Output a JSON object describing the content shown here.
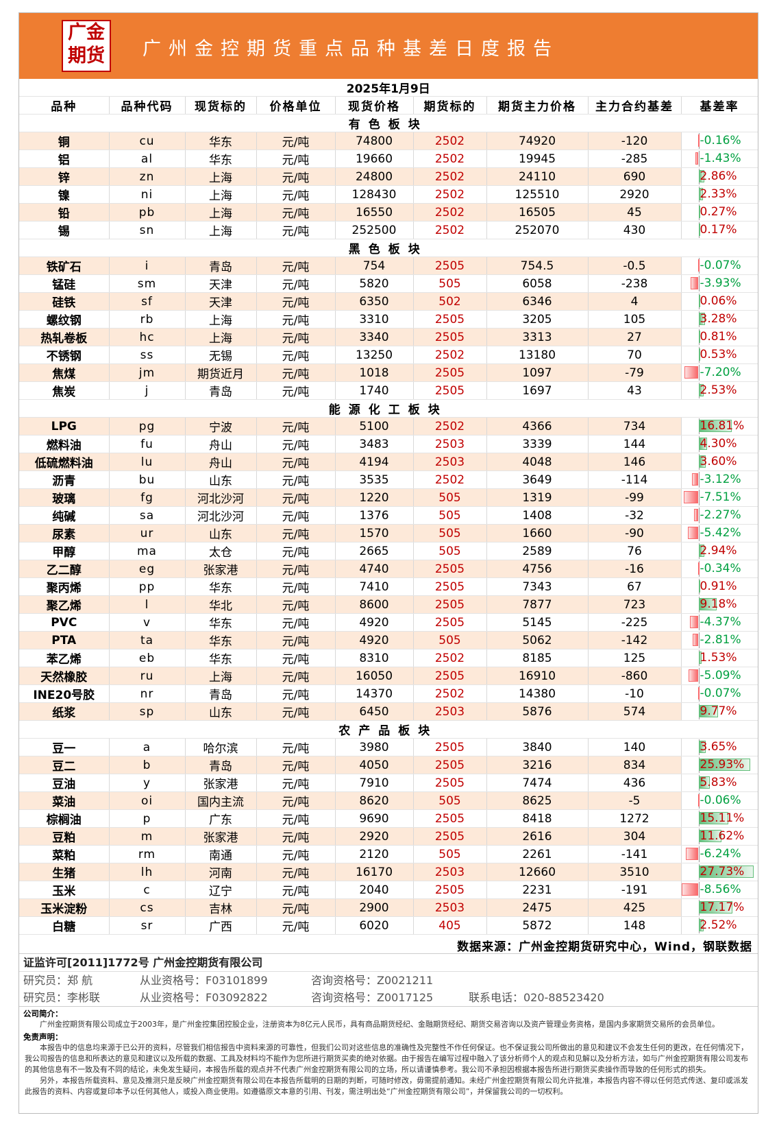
{
  "header": {
    "logo": [
      "广金",
      "期货"
    ],
    "title": "广州金控期货重点品种基差日度报告"
  },
  "date": "2025年1月9日",
  "columns": [
    "品种",
    "品种代码",
    "现货标的",
    "价格单位",
    "现货价格",
    "期货标的",
    "期货主力价格",
    "主力合约基差",
    "基差率"
  ],
  "sections": [
    {
      "name": "有色板块",
      "rows": [
        [
          "铜",
          "cu",
          "华东",
          "元/吨",
          74800,
          "2502",
          74920,
          -120,
          {
            "value": -0.16,
            "label": "-0.16%"
          }
        ],
        [
          "铝",
          "al",
          "华东",
          "元/吨",
          19660,
          "2502",
          19945,
          -285,
          {
            "value": -1.43,
            "label": "-1.43%"
          }
        ],
        [
          "锌",
          "zn",
          "上海",
          "元/吨",
          24800,
          "2502",
          24110,
          690,
          {
            "value": 2.86,
            "label": "2.86%"
          }
        ],
        [
          "镍",
          "ni",
          "上海",
          "元/吨",
          128430,
          "2502",
          125510,
          2920,
          {
            "value": 2.33,
            "label": "2.33%"
          }
        ],
        [
          "铅",
          "pb",
          "上海",
          "元/吨",
          16550,
          "2502",
          16505,
          45,
          {
            "value": 0.27,
            "label": "0.27%"
          }
        ],
        [
          "锡",
          "sn",
          "上海",
          "元/吨",
          252500,
          "2502",
          252070,
          430,
          {
            "value": 0.17,
            "label": "0.17%"
          }
        ]
      ]
    },
    {
      "name": "黑色板块",
      "rows": [
        [
          "铁矿石",
          "i",
          "青岛",
          "元/吨",
          754,
          "2505",
          754.5,
          -0.5,
          {
            "value": -0.07,
            "label": "-0.07%"
          }
        ],
        [
          "锰硅",
          "sm",
          "天津",
          "元/吨",
          5820,
          "505",
          6058,
          -238,
          {
            "value": -3.93,
            "label": "-3.93%"
          }
        ],
        [
          "硅铁",
          "sf",
          "天津",
          "元/吨",
          6350,
          "502",
          6346,
          4,
          {
            "value": 0.06,
            "label": "0.06%"
          }
        ],
        [
          "螺纹钢",
          "rb",
          "上海",
          "元/吨",
          3310,
          "2505",
          3205,
          105,
          {
            "value": 3.28,
            "label": "3.28%"
          }
        ],
        [
          "热轧卷板",
          "hc",
          "上海",
          "元/吨",
          3340,
          "2505",
          3313,
          27,
          {
            "value": 0.81,
            "label": "0.81%"
          }
        ],
        [
          "不锈钢",
          "ss",
          "无锡",
          "元/吨",
          13250,
          "2502",
          13180,
          70,
          {
            "value": 0.53,
            "label": "0.53%"
          }
        ],
        [
          "焦煤",
          "jm",
          "期货近月",
          "元/吨",
          1018,
          "2505",
          1097,
          -79,
          {
            "value": -7.2,
            "label": "-7.20%"
          }
        ],
        [
          "焦炭",
          "j",
          "青岛",
          "元/吨",
          1740,
          "2505",
          1697,
          43,
          {
            "value": 2.53,
            "label": "2.53%"
          }
        ]
      ]
    },
    {
      "name": "能源化工板块",
      "rows": [
        [
          "LPG",
          "pg",
          "宁波",
          "元/吨",
          5100,
          "2502",
          4366,
          734,
          {
            "value": 16.81,
            "label": "16.81%"
          }
        ],
        [
          "燃料油",
          "fu",
          "舟山",
          "元/吨",
          3483,
          "2503",
          3339,
          144,
          {
            "value": 4.3,
            "label": "4.30%"
          }
        ],
        [
          "低硫燃料油",
          "lu",
          "舟山",
          "元/吨",
          4194,
          "2503",
          4048,
          146,
          {
            "value": 3.6,
            "label": "3.60%"
          }
        ],
        [
          "沥青",
          "bu",
          "山东",
          "元/吨",
          3535,
          "2502",
          3649,
          -114,
          {
            "value": -3.12,
            "label": "-3.12%"
          }
        ],
        [
          "玻璃",
          "fg",
          "河北沙河",
          "元/吨",
          1220,
          "505",
          1319,
          -99,
          {
            "value": -7.51,
            "label": "-7.51%"
          }
        ],
        [
          "纯碱",
          "sa",
          "河北沙河",
          "元/吨",
          1376,
          "505",
          1408,
          -32,
          {
            "value": -2.27,
            "label": "-2.27%"
          }
        ],
        [
          "尿素",
          "ur",
          "山东",
          "元/吨",
          1570,
          "505",
          1660,
          -90,
          {
            "value": -5.42,
            "label": "-5.42%"
          }
        ],
        [
          "甲醇",
          "ma",
          "太仓",
          "元/吨",
          2665,
          "505",
          2589,
          76,
          {
            "value": 2.94,
            "label": "2.94%"
          }
        ],
        [
          "乙二醇",
          "eg",
          "张家港",
          "元/吨",
          4740,
          "2505",
          4756,
          -16,
          {
            "value": -0.34,
            "label": "-0.34%"
          }
        ],
        [
          "聚丙烯",
          "pp",
          "华东",
          "元/吨",
          7410,
          "2505",
          7343,
          67,
          {
            "value": 0.91,
            "label": "0.91%"
          }
        ],
        [
          "聚乙烯",
          "l",
          "华北",
          "元/吨",
          8600,
          "2505",
          7877,
          723,
          {
            "value": 9.18,
            "label": "9.18%"
          }
        ],
        [
          "PVC",
          "v",
          "华东",
          "元/吨",
          4920,
          "2505",
          5145,
          -225,
          {
            "value": -4.37,
            "label": "-4.37%"
          }
        ],
        [
          "PTA",
          "ta",
          "华东",
          "元/吨",
          4920,
          "505",
          5062,
          -142,
          {
            "value": -2.81,
            "label": "-2.81%"
          }
        ],
        [
          "苯乙烯",
          "eb",
          "华东",
          "元/吨",
          8310,
          "2502",
          8185,
          125,
          {
            "value": 1.53,
            "label": "1.53%"
          }
        ],
        [
          "天然橡胶",
          "ru",
          "上海",
          "元/吨",
          16050,
          "2505",
          16910,
          -860,
          {
            "value": -5.09,
            "label": "-5.09%"
          }
        ],
        [
          "INE20号胶",
          "nr",
          "青岛",
          "元/吨",
          14370,
          "2502",
          14380,
          -10,
          {
            "value": -0.07,
            "label": "-0.07%"
          }
        ],
        [
          "纸浆",
          "sp",
          "山东",
          "元/吨",
          6450,
          "2503",
          5876,
          574,
          {
            "value": 9.77,
            "label": "9.77%"
          }
        ]
      ]
    },
    {
      "name": "农产品板块",
      "rows": [
        [
          "豆一",
          "a",
          "哈尔滨",
          "元/吨",
          3980,
          "2505",
          3840,
          140,
          {
            "value": 3.65,
            "label": "3.65%"
          }
        ],
        [
          "豆二",
          "b",
          "青岛",
          "元/吨",
          4050,
          "2505",
          3216,
          834,
          {
            "value": 25.93,
            "label": "25.93%"
          }
        ],
        [
          "豆油",
          "y",
          "张家港",
          "元/吨",
          7910,
          "2505",
          7474,
          436,
          {
            "value": 5.83,
            "label": "5.83%"
          }
        ],
        [
          "菜油",
          "oi",
          "国内主流",
          "元/吨",
          8620,
          "505",
          8625,
          -5,
          {
            "value": -0.06,
            "label": "-0.06%"
          }
        ],
        [
          "棕榈油",
          "p",
          "广东",
          "元/吨",
          9690,
          "2505",
          8418,
          1272,
          {
            "value": 15.11,
            "label": "15.11%"
          }
        ],
        [
          "豆粕",
          "m",
          "张家港",
          "元/吨",
          2920,
          "2505",
          2616,
          304,
          {
            "value": 11.62,
            "label": "11.62%"
          }
        ],
        [
          "菜粕",
          "rm",
          "南通",
          "元/吨",
          2120,
          "505",
          2261,
          -141,
          {
            "value": -6.24,
            "label": "-6.24%"
          }
        ],
        [
          "生猪",
          "lh",
          "河南",
          "元/吨",
          16170,
          "2503",
          12660,
          3510,
          {
            "value": 27.73,
            "label": "27.73%"
          }
        ],
        [
          "玉米",
          "c",
          "辽宁",
          "元/吨",
          2040,
          "2505",
          2231,
          -191,
          {
            "value": -8.56,
            "label": "-8.56%"
          }
        ],
        [
          "玉米淀粉",
          "cs",
          "吉林",
          "元/吨",
          2900,
          "2503",
          2475,
          425,
          {
            "value": 17.17,
            "label": "17.17%"
          }
        ],
        [
          "白糖",
          "sr",
          "广西",
          "元/吨",
          6020,
          "405",
          5872,
          148,
          {
            "value": 2.52,
            "label": "2.52%"
          }
        ]
      ]
    }
  ],
  "source": "数据来源：广州金控期货研究中心，Wind，钢联数据",
  "footer": {
    "license": "证监许可[2011]1772号 广州金控期货有限公司",
    "researchers": [
      [
        "研究员：郑 航",
        "从业资格号：F03101899",
        "咨询资格号：Z0021211"
      ],
      [
        "研究员：李彬联",
        "从业资格号：F03092822",
        "咨询资格号：Z0017125",
        "联系电话：020-88523420"
      ]
    ],
    "intro_title": "公司简介：",
    "intro": "广州金控期货有限公司成立于2003年，是广州金控集团控股企业，注册资本为8亿元人民币，具有商品期货经纪、金融期货经纪、期货交易咨询以及资产管理业务资格，是国内多家期货交易所的会员单位。",
    "disclaimer_title": "免责声明：",
    "disclaimer": [
      "本报告中的信息均来源于已公开的资料，尽管我们相信报告中资料来源的可靠性，但我们公司对这些信息的准确性及完整性不作任何保证。也不保证我公司所做出的意见和建议不会发生任何的更改，在任何情况下，我公司报告的信息和所表达的意见和建议以及所载的数据、工具及材料均不能作为您所进行期货买卖的绝对依据。由于报告在编写过程中融入了该分析师个人的观点和见解以及分析方法，如与广州金控期货有限公司发布的其他信息有不一致及有不同的结论，未免发生疑问，本报告所载的观点并不代表广州金控期货有限公司的立场，所以请谨慎参考。我公司不承担因根据本报告所进行期货买卖操作而导致的任何形式的损失。",
      "另外，本报告所载资料、意见及推测只是反映广州金控期货有限公司在本报告所载明的日期的判断，可随时修改，毋需提前通知。未经广州金控期货有限公司允许批准，本报告内容不得以任何范式传送、复印或派发此报告的资料、内容或复印本予以任何其他人，或投入商业使用。如遵循原文本意的引用、刊发，需注明出处“广州金控期货有限公司”，并保留我公司的一切权利。"
    ]
  }
}
